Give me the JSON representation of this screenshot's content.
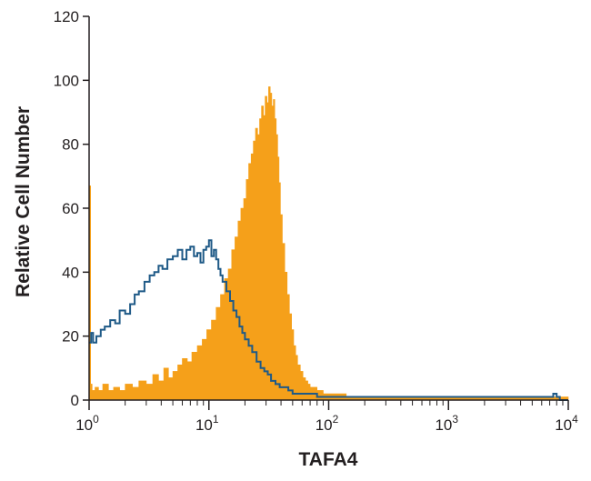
{
  "chart_data": {
    "type": "area",
    "title": "",
    "xlabel": "TAFA4",
    "ylabel": "Relative Cell Number",
    "xscale": "log",
    "xlim": [
      1,
      10000
    ],
    "ylim": [
      0,
      120
    ],
    "grid": false,
    "legend": "none",
    "y_ticks": [
      "0",
      "20",
      "40",
      "60",
      "80",
      "100",
      "120"
    ],
    "x_ticks": [
      {
        "base": "10",
        "exp": "0"
      },
      {
        "base": "10",
        "exp": "1"
      },
      {
        "base": "10",
        "exp": "2"
      },
      {
        "base": "10",
        "exp": "3"
      },
      {
        "base": "10",
        "exp": "4"
      }
    ],
    "series": [
      {
        "style": "filled",
        "color": "#f5a01a",
        "x": [
          1,
          1.03,
          1.06,
          1.12,
          1.2,
          1.3,
          1.45,
          1.6,
          1.8,
          2.0,
          2.3,
          2.6,
          3.0,
          3.4,
          3.8,
          4.2,
          4.6,
          5.0,
          5.5,
          6.0,
          6.6,
          7.2,
          8.0,
          8.8,
          9.6,
          10.5,
          11.5,
          12.5,
          13.5,
          14.5,
          15.5,
          16.5,
          17.5,
          18.5,
          19.5,
          20.5,
          21.5,
          22.5,
          23.5,
          24.5,
          25.5,
          26.5,
          27.5,
          28.5,
          29.5,
          30.5,
          31.5,
          32.5,
          33.5,
          34.5,
          35.5,
          36.5,
          37.5,
          38.5,
          39.5,
          41,
          43,
          45,
          47,
          49,
          51,
          53,
          55,
          58,
          61,
          64,
          67,
          70,
          75,
          80,
          85,
          90,
          100,
          110,
          125,
          140,
          160,
          180,
          200,
          250,
          300,
          400,
          500,
          700,
          1000,
          1500,
          2000,
          3000,
          4000,
          5000,
          6000,
          7000,
          8000,
          9000,
          10000
        ],
        "y": [
          67,
          5,
          3,
          4,
          3,
          5,
          3,
          4,
          3,
          5,
          4,
          6,
          5,
          8,
          6,
          10,
          7,
          9,
          11,
          13,
          12,
          15,
          17,
          19,
          22,
          25,
          29,
          33,
          38,
          41,
          47,
          51,
          56,
          60,
          63,
          69,
          74,
          77,
          81,
          85,
          83,
          88,
          92,
          89,
          95,
          93,
          98,
          96,
          92,
          94,
          88,
          83,
          76,
          68,
          58,
          49,
          40,
          33,
          27,
          22,
          17,
          14,
          11,
          9,
          7,
          6,
          5,
          4,
          4,
          3,
          3,
          2,
          2,
          2,
          2,
          1,
          1,
          1,
          1,
          1,
          1,
          1,
          1,
          1,
          1,
          1,
          1,
          1,
          1,
          1,
          1,
          1,
          1,
          1,
          0
        ]
      },
      {
        "style": "outline",
        "color": "#1f5a87",
        "x": [
          1,
          1.04,
          1.08,
          1.15,
          1.25,
          1.35,
          1.5,
          1.65,
          1.8,
          2.0,
          2.2,
          2.4,
          2.6,
          2.9,
          3.2,
          3.5,
          3.8,
          4.1,
          4.5,
          5.0,
          5.5,
          6.0,
          6.5,
          7.0,
          7.5,
          8.0,
          8.5,
          9.0,
          9.5,
          10.0,
          10.5,
          11.0,
          11.5,
          12.0,
          12.5,
          13.0,
          14.0,
          15.0,
          16.0,
          17.0,
          18.0,
          19.0,
          20.0,
          21.5,
          23.0,
          25.0,
          27.0,
          29.0,
          31.0,
          33.0,
          36.0,
          39.0,
          42.0,
          46.0,
          50.0,
          55.0,
          60.0,
          70.0,
          80.0,
          100.0,
          120.0,
          150.0,
          200.0,
          300.0,
          500.0,
          1000.0,
          2000.0,
          4000.0,
          7000.0,
          7500.0,
          8000.0,
          8500.0,
          10000.0
        ],
        "y": [
          18,
          21,
          18,
          20,
          22,
          23,
          25,
          24,
          28,
          27,
          30,
          33,
          34,
          37,
          39,
          40,
          42,
          41,
          44,
          45,
          47,
          44,
          47,
          48,
          45,
          46,
          43,
          47,
          48,
          50,
          45,
          47,
          44,
          41,
          39,
          37,
          34,
          31,
          28,
          26,
          23,
          21,
          19,
          17,
          15,
          12,
          10,
          9,
          8,
          6,
          5,
          4,
          4,
          3,
          2,
          2,
          2,
          2,
          1,
          1,
          1,
          1,
          1,
          1,
          1,
          1,
          1,
          1,
          1,
          2,
          1,
          0,
          0
        ]
      }
    ]
  }
}
